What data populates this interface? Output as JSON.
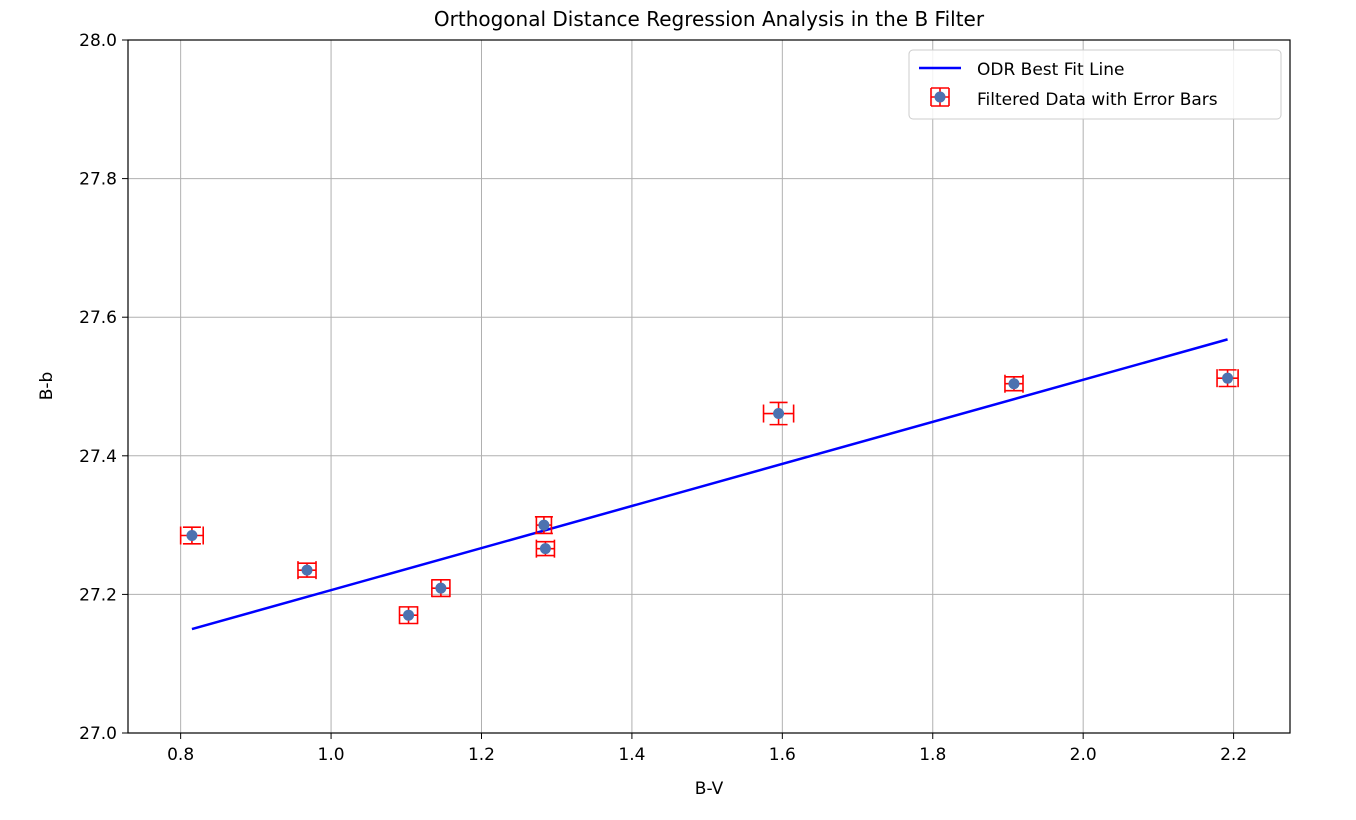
{
  "chart_data": {
    "type": "scatter",
    "title": "Orthogonal Distance Regression Analysis in the B Filter",
    "xlabel": "B-V",
    "ylabel": "B-b",
    "xlim": [
      0.73,
      2.275
    ],
    "ylim": [
      27.0,
      28.0
    ],
    "xticks": [
      0.8,
      1.0,
      1.2,
      1.4,
      1.6,
      1.8,
      2.0,
      2.2
    ],
    "xtick_labels": [
      "0.8",
      "1.0",
      "1.2",
      "1.4",
      "1.6",
      "1.8",
      "2.0",
      "2.2"
    ],
    "yticks": [
      27.0,
      27.2,
      27.4,
      27.6,
      27.8,
      28.0
    ],
    "ytick_labels": [
      "27.0",
      "27.2",
      "27.4",
      "27.6",
      "27.8",
      "28.0"
    ],
    "grid": true,
    "legend_position": "top-right",
    "series": [
      {
        "name": "ODR Best Fit Line",
        "kind": "line",
        "color": "#0000ff",
        "x": [
          0.815,
          2.192
        ],
        "y": [
          27.15,
          27.568
        ]
      },
      {
        "name": "Filtered Data with Error Bars",
        "kind": "errorbar",
        "marker_color": "#4c72b0",
        "error_color": "#ff0000",
        "points": [
          {
            "x": 0.815,
            "y": 27.285,
            "xerr": 0.015,
            "yerr": 0.012
          },
          {
            "x": 0.968,
            "y": 27.235,
            "xerr": 0.012,
            "yerr": 0.01
          },
          {
            "x": 1.103,
            "y": 27.17,
            "xerr": 0.012,
            "yerr": 0.012
          },
          {
            "x": 1.146,
            "y": 27.209,
            "xerr": 0.012,
            "yerr": 0.012
          },
          {
            "x": 1.283,
            "y": 27.3,
            "xerr": 0.01,
            "yerr": 0.012
          },
          {
            "x": 1.285,
            "y": 27.266,
            "xerr": 0.012,
            "yerr": 0.01
          },
          {
            "x": 1.595,
            "y": 27.461,
            "xerr": 0.02,
            "yerr": 0.016
          },
          {
            "x": 1.908,
            "y": 27.504,
            "xerr": 0.012,
            "yerr": 0.01
          },
          {
            "x": 2.192,
            "y": 27.512,
            "xerr": 0.014,
            "yerr": 0.012
          }
        ]
      }
    ]
  }
}
